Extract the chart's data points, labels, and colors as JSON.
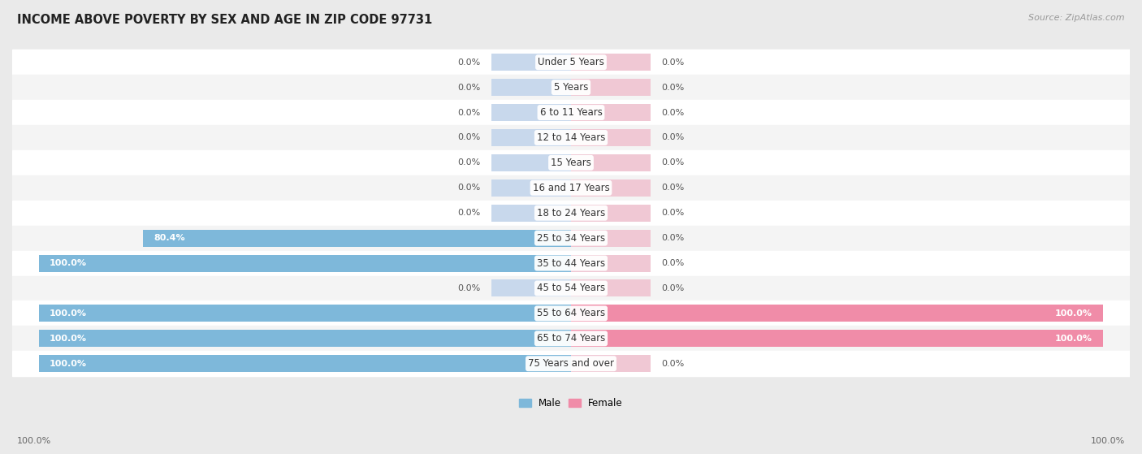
{
  "title": "INCOME ABOVE POVERTY BY SEX AND AGE IN ZIP CODE 97731",
  "source": "Source: ZipAtlas.com",
  "categories": [
    "Under 5 Years",
    "5 Years",
    "6 to 11 Years",
    "12 to 14 Years",
    "15 Years",
    "16 and 17 Years",
    "18 to 24 Years",
    "25 to 34 Years",
    "35 to 44 Years",
    "45 to 54 Years",
    "55 to 64 Years",
    "65 to 74 Years",
    "75 Years and over"
  ],
  "male_values": [
    0.0,
    0.0,
    0.0,
    0.0,
    0.0,
    0.0,
    0.0,
    80.4,
    100.0,
    0.0,
    100.0,
    100.0,
    100.0
  ],
  "female_values": [
    0.0,
    0.0,
    0.0,
    0.0,
    0.0,
    0.0,
    0.0,
    0.0,
    0.0,
    0.0,
    100.0,
    100.0,
    0.0
  ],
  "male_color": "#7EB8DA",
  "female_color": "#F08CA8",
  "male_label_color": "#6AAED0",
  "female_label_color": "#EE7A98",
  "male_label": "Male",
  "female_label": "Female",
  "row_bg_white": "#FFFFFF",
  "row_bg_gray": "#F0F0F0",
  "bar_bg_color": "#E0E0E8",
  "title_fontsize": 10.5,
  "source_fontsize": 8,
  "label_fontsize": 8.5,
  "cat_fontsize": 8.5,
  "val_fontsize": 8.0,
  "bar_height": 0.68,
  "xlim": 100
}
